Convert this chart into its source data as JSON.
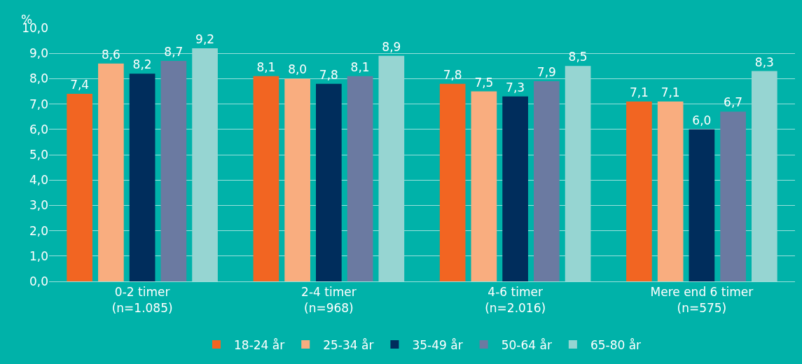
{
  "chart_data": {
    "type": "bar",
    "ylabel": "%",
    "categories": [
      "0-2 timer\n(n=1.085)",
      "2-4 timer\n(n=968)",
      "4-6 timer\n(n=2.016)",
      "Mere end 6 timer\n(n=575)"
    ],
    "series": [
      {
        "name": "18-24 år",
        "color": "#f26522",
        "values": [
          7.4,
          8.1,
          7.8,
          7.1
        ],
        "value_labels": [
          "7,4",
          "8,1",
          "7,8",
          "7,1"
        ]
      },
      {
        "name": "25-34 år",
        "color": "#f9ad7f",
        "values": [
          8.6,
          8.0,
          7.5,
          7.1
        ],
        "value_labels": [
          "8,6",
          "8,0",
          "7,5",
          "7,1"
        ]
      },
      {
        "name": "35-49 år",
        "color": "#002d5c",
        "values": [
          8.2,
          7.8,
          7.3,
          6.0
        ],
        "value_labels": [
          "8,2",
          "7,8",
          "7,3",
          "6,0"
        ]
      },
      {
        "name": "50-64 år",
        "color": "#6b7aa1",
        "values": [
          8.7,
          8.1,
          7.9,
          6.7
        ],
        "value_labels": [
          "8,7",
          "8,1",
          "7,9",
          "6,7"
        ]
      },
      {
        "name": "65-80 år",
        "color": "#96d5d2",
        "values": [
          9.2,
          8.9,
          8.5,
          8.3
        ],
        "value_labels": [
          "9,2",
          "8,9",
          "8,5",
          "8,3"
        ]
      }
    ],
    "ylim": [
      0,
      10
    ],
    "yticks": [
      {
        "value": 0,
        "label": "0,0"
      },
      {
        "value": 1,
        "label": "1,0"
      },
      {
        "value": 2,
        "label": "2,0"
      },
      {
        "value": 3,
        "label": "3,0"
      },
      {
        "value": 4,
        "label": "4,0"
      },
      {
        "value": 5,
        "label": "5,0"
      },
      {
        "value": 6,
        "label": "6,0"
      },
      {
        "value": 7,
        "label": "7,0"
      },
      {
        "value": 8,
        "label": "8,0"
      },
      {
        "value": 9,
        "label": "9,0"
      },
      {
        "value": 10,
        "label": "10,0"
      }
    ],
    "grid": "y",
    "legend": "bottom"
  }
}
